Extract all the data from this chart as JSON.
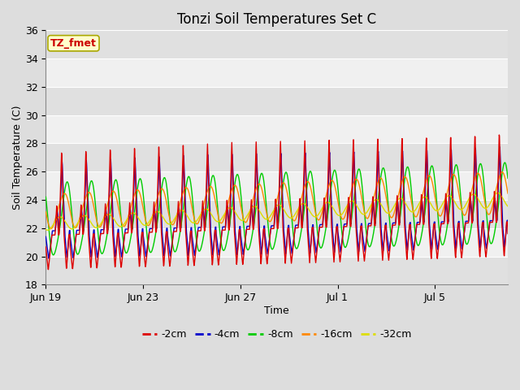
{
  "title": "Tonzi Soil Temperatures Set C",
  "xlabel": "Time",
  "ylabel": "Soil Temperature (C)",
  "ylim": [
    18,
    36
  ],
  "num_days": 19,
  "tick_positions_days": [
    0,
    4,
    8,
    12,
    16
  ],
  "tick_labels": [
    "Jun 19",
    "Jun 23",
    "Jun 27",
    "Jul 1",
    "Jul 5"
  ],
  "colors": {
    "-2cm": "#dd0000",
    "-4cm": "#0000cc",
    "-8cm": "#00cc00",
    "-16cm": "#ff8800",
    "-32cm": "#dddd00"
  },
  "annotation_text": "TZ_fmet",
  "annotation_color": "#cc0000",
  "annotation_bg": "#ffffcc",
  "annotation_border": "#aaa800",
  "background_color": "#dddddd",
  "plot_bg_light": "#f0f0f0",
  "plot_bg_dark": "#e0e0e0",
  "grid_color": "#ffffff",
  "title_fontsize": 12,
  "label_fontsize": 9,
  "tick_fontsize": 9,
  "line_width": 1.0,
  "samples_per_day": 96
}
